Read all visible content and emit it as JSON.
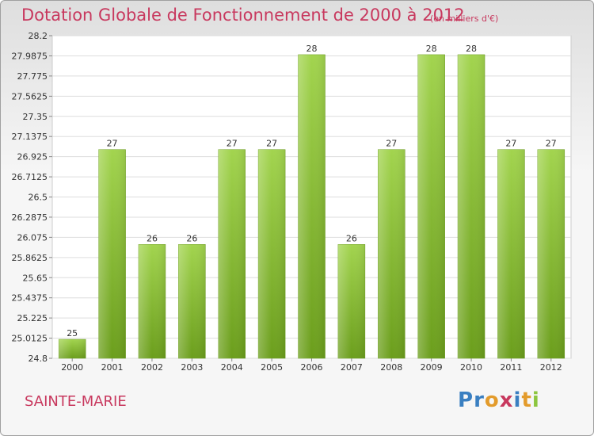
{
  "chart_data": {
    "type": "bar",
    "title": "Dotation Globale de Fonctionnement de 2000 à 2012",
    "unit_note": "(en milliers d'€)",
    "categories": [
      "2000",
      "2001",
      "2002",
      "2003",
      "2004",
      "2005",
      "2006",
      "2007",
      "2008",
      "2009",
      "2010",
      "2011",
      "2012"
    ],
    "values": [
      25.0,
      27.0,
      26.0,
      26.0,
      27.0,
      27.0,
      28.0,
      26.0,
      27.0,
      28.0,
      28.0,
      27.0,
      27.0
    ],
    "data_labels": [
      "25",
      "27",
      "26",
      "26",
      "27",
      "27",
      "28",
      "26",
      "27",
      "28",
      "28",
      "27",
      "27"
    ],
    "ylim": [
      24.8,
      28.2
    ],
    "yticks": [
      28.2,
      27.9875,
      27.775,
      27.5625,
      27.35,
      27.1375,
      26.925,
      26.7125,
      26.5,
      26.2875,
      26.075,
      25.8625,
      25.65,
      25.4375,
      25.225,
      25.0125,
      24.8
    ],
    "ytick_labels": [
      "28.2",
      "27.9875",
      "27.775",
      "27.5625",
      "27.35",
      "27.1375",
      "26.925",
      "26.7125",
      "26.5",
      "26.2875",
      "26.075",
      "25.8625",
      "25.65",
      "25.4375",
      "25.225",
      "25.0125",
      "24.8"
    ],
    "bar_color": "#8cc63f",
    "grid": true
  },
  "footer": {
    "commune": "SAINTE-MARIE",
    "logo": [
      "P",
      "r",
      "o",
      "x",
      "i",
      "t",
      "i"
    ]
  },
  "colors": {
    "title": "#c8385e",
    "logo": [
      "#3a7fc1",
      "#3a7fc1",
      "#e39b2b",
      "#c8385e",
      "#3a7fc1",
      "#e39b2b",
      "#8cc63f"
    ]
  }
}
